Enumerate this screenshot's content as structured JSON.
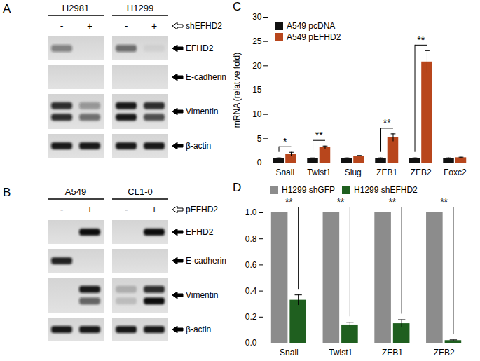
{
  "blots": [
    {
      "panel": "A",
      "groups": [
        "H2981",
        "H1299"
      ],
      "lanes": [
        "-",
        "+",
        "-",
        "+"
      ],
      "treatment": "shEFHD2",
      "rows": [
        {
          "label": "EFHD2",
          "bands": [
            [
              0.45
            ],
            [
              0
            ],
            [
              0.55
            ],
            [
              0.05
            ]
          ]
        },
        {
          "label": "E-cadherin",
          "bands": [
            [
              0
            ],
            [
              0
            ],
            [
              0
            ],
            [
              0
            ]
          ]
        },
        {
          "label": "Vimentin",
          "bands": [
            [
              0.85,
              0.85
            ],
            [
              0.35,
              0.55
            ],
            [
              0.95,
              0.95
            ],
            [
              0.85,
              0.7
            ]
          ]
        },
        {
          "label": "β-actin",
          "bands": [
            [
              0.95
            ],
            [
              0.95
            ],
            [
              0.95
            ],
            [
              0.95
            ]
          ]
        }
      ]
    },
    {
      "panel": "B",
      "groups": [
        "A549",
        "CL1-0"
      ],
      "lanes": [
        "-",
        "+",
        "-",
        "+"
      ],
      "treatment": "pEFHD2",
      "rows": [
        {
          "label": "EFHD2",
          "bands": [
            [
              0
            ],
            [
              1
            ],
            [
              0
            ],
            [
              1
            ]
          ]
        },
        {
          "label": "E-cadherin",
          "bands": [
            [
              0.9
            ],
            [
              0
            ],
            [
              0
            ],
            [
              0
            ]
          ]
        },
        {
          "label": "Vimentin",
          "bands": [
            [
              0,
              0
            ],
            [
              0.95,
              0.6
            ],
            [
              0.2,
              0.15
            ],
            [
              0.85,
              1
            ]
          ]
        },
        {
          "label": "β-actin",
          "bands": [
            [
              0.95
            ],
            [
              0.95
            ],
            [
              0.95
            ],
            [
              0.95
            ]
          ]
        }
      ]
    }
  ],
  "chart_data": [
    {
      "panel": "C",
      "type": "bar",
      "y_label": "mRNA (relative fold)",
      "categories": [
        "Snail",
        "Twist1",
        "Slug",
        "ZEB1",
        "ZEB2",
        "Foxc2"
      ],
      "series": [
        {
          "name": "A549 pcDNA",
          "color": "#111111",
          "values": [
            1,
            1,
            1,
            1,
            1,
            1
          ],
          "errors": [
            0.05,
            0.05,
            0.05,
            0.05,
            0.05,
            0.05
          ]
        },
        {
          "name": "A549 pEFHD2",
          "color": "#b8461c",
          "values": [
            1.8,
            3.2,
            1.4,
            5.2,
            20.8,
            1.1
          ],
          "errors": [
            0.4,
            0.3,
            0.15,
            0.8,
            2.3,
            0.1
          ]
        }
      ],
      "significance": [
        "*",
        "**",
        null,
        "**",
        "**",
        null
      ],
      "ylim": [
        0,
        30
      ],
      "yticks": [
        0,
        5,
        10,
        15,
        20,
        25,
        30
      ],
      "grid": false,
      "legend": "top-left"
    },
    {
      "panel": "D",
      "type": "bar",
      "categories": [
        "Snail",
        "Twist1",
        "ZEB1",
        "ZEB2"
      ],
      "series": [
        {
          "name": "H1299 shGFP",
          "color": "#8c8c8c",
          "values": [
            1,
            1,
            1,
            1
          ]
        },
        {
          "name": "H1299 shEFHD2",
          "color": "#1f5f1f",
          "values": [
            0.33,
            0.14,
            0.15,
            0.02
          ],
          "errors": [
            0.04,
            0.02,
            0.03,
            0.005
          ]
        }
      ],
      "significance": [
        "**",
        "**",
        "**",
        "**"
      ],
      "ylim": [
        0,
        1
      ],
      "yticks": [
        {
          "value": 0,
          "label": "0.0"
        },
        {
          "value": 0.2,
          "label": "0.2"
        },
        {
          "value": 0.4,
          "label": "0.4"
        },
        {
          "value": 0.6,
          "label": "0.6"
        },
        {
          "value": 0.8,
          "label": "0.8"
        },
        {
          "value": 1,
          "label": "1.0"
        }
      ],
      "grid": false,
      "legend": "top"
    }
  ]
}
